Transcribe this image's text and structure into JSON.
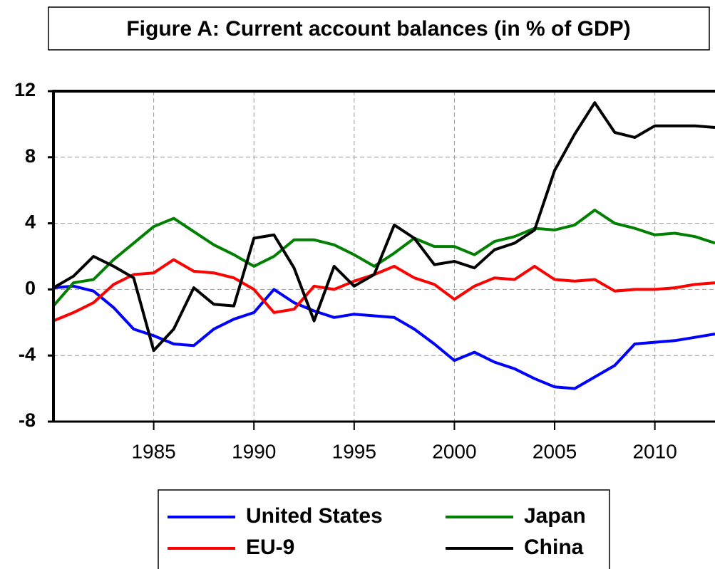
{
  "chart_data": {
    "type": "line",
    "title": "Figure A: Current account balances (in % of GDP)",
    "x": [
      1980,
      1981,
      1982,
      1983,
      1984,
      1985,
      1986,
      1987,
      1988,
      1989,
      1990,
      1991,
      1992,
      1993,
      1994,
      1995,
      1996,
      1997,
      1998,
      1999,
      2000,
      2001,
      2002,
      2003,
      2004,
      2005,
      2006,
      2007,
      2008,
      2009,
      2010,
      2011,
      2012,
      2013
    ],
    "series": [
      {
        "name": "United States",
        "color": "#0000ff",
        "values": [
          0.1,
          0.2,
          -0.1,
          -1.1,
          -2.4,
          -2.8,
          -3.3,
          -3.4,
          -2.4,
          -1.8,
          -1.4,
          0.0,
          -0.8,
          -1.3,
          -1.7,
          -1.5,
          -1.6,
          -1.7,
          -2.4,
          -3.3,
          -4.3,
          -3.8,
          -4.4,
          -4.8,
          -5.4,
          -5.9,
          -6.0,
          -5.3,
          -4.6,
          -3.3,
          -3.2,
          -3.1,
          -2.9,
          -2.7
        ]
      },
      {
        "name": "Japan",
        "color": "#008000",
        "values": [
          -1.0,
          0.4,
          0.6,
          1.8,
          2.8,
          3.8,
          4.3,
          3.5,
          2.7,
          2.1,
          1.4,
          2.0,
          3.0,
          3.0,
          2.7,
          2.1,
          1.4,
          2.2,
          3.1,
          2.6,
          2.6,
          2.1,
          2.9,
          3.2,
          3.7,
          3.6,
          3.9,
          4.8,
          4.0,
          3.7,
          3.3,
          3.4,
          3.2,
          2.8
        ]
      },
      {
        "name": "EU-9",
        "color": "#ff0000",
        "values": [
          -1.9,
          -1.4,
          -0.8,
          0.3,
          0.9,
          1.0,
          1.8,
          1.1,
          1.0,
          0.7,
          0.0,
          -1.4,
          -1.2,
          0.2,
          0.0,
          0.5,
          0.9,
          1.4,
          0.7,
          0.3,
          -0.6,
          0.2,
          0.7,
          0.6,
          1.4,
          0.6,
          0.5,
          0.6,
          -0.1,
          0.0,
          0.0,
          0.1,
          0.3,
          0.4
        ]
      },
      {
        "name": "China",
        "color": "#000000",
        "values": [
          0.1,
          0.8,
          2.0,
          1.4,
          0.7,
          -3.7,
          -2.4,
          0.1,
          -0.9,
          -1.0,
          3.1,
          3.3,
          1.3,
          -1.9,
          1.4,
          0.2,
          0.9,
          3.9,
          3.1,
          1.5,
          1.7,
          1.3,
          2.4,
          2.8,
          3.6,
          7.2,
          9.4,
          11.3,
          9.5,
          9.2,
          9.9,
          9.9,
          9.9,
          9.8
        ]
      }
    ],
    "xlim": [
      1980,
      2013
    ],
    "xticks": [
      1985,
      1990,
      1995,
      2000,
      2005,
      2010
    ],
    "ylim": [
      -8,
      12
    ],
    "yticks": [
      -8,
      -4,
      0,
      4,
      8,
      12
    ],
    "grid": true
  }
}
